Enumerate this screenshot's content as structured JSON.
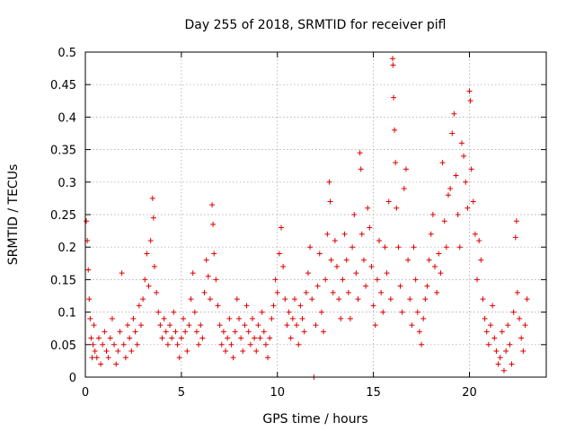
{
  "chart_data": {
    "type": "scatter",
    "title": "Day 255 of 2018, SRMTID for receiver pifl",
    "xlabel": "GPS time / hours",
    "ylabel": "SRMTID / TECUs",
    "xlim": [
      0,
      24
    ],
    "ylim": [
      0,
      0.5
    ],
    "xticks": [
      0,
      5,
      10,
      15,
      20
    ],
    "yticks": [
      0,
      0.05,
      0.1,
      0.15,
      0.2,
      0.25,
      0.3,
      0.35,
      0.4,
      0.45,
      0.5
    ],
    "xtick_labels": [
      "0",
      "5",
      "10",
      "15",
      "20"
    ],
    "ytick_labels": [
      "0",
      "0.05",
      "0.1",
      "0.15",
      "0.2",
      "0.25",
      "0.3",
      "0.35",
      "0.4",
      "0.45",
      "0.5"
    ],
    "grid": true,
    "marker": "+",
    "color": "#e00000",
    "series": [
      {
        "name": "SRMTID",
        "points": [
          [
            0.05,
            0.24
          ],
          [
            0.1,
            0.21
          ],
          [
            0.15,
            0.165
          ],
          [
            0.2,
            0.12
          ],
          [
            0.25,
            0.09
          ],
          [
            0.3,
            0.06
          ],
          [
            0.35,
            0.03
          ],
          [
            0.4,
            0.05
          ],
          [
            0.45,
            0.08
          ],
          [
            0.5,
            0.04
          ],
          [
            0.6,
            0.03
          ],
          [
            0.7,
            0.06
          ],
          [
            0.8,
            0.02
          ],
          [
            0.9,
            0.05
          ],
          [
            1.0,
            0.07
          ],
          [
            1.1,
            0.04
          ],
          [
            1.2,
            0.03
          ],
          [
            1.3,
            0.06
          ],
          [
            1.4,
            0.09
          ],
          [
            1.5,
            0.05
          ],
          [
            1.6,
            0.02
          ],
          [
            1.7,
            0.04
          ],
          [
            1.8,
            0.07
          ],
          [
            1.9,
            0.16
          ],
          [
            2.0,
            0.05
          ],
          [
            2.1,
            0.03
          ],
          [
            2.2,
            0.08
          ],
          [
            2.3,
            0.06
          ],
          [
            2.4,
            0.04
          ],
          [
            2.5,
            0.09
          ],
          [
            2.6,
            0.07
          ],
          [
            2.7,
            0.05
          ],
          [
            2.8,
            0.11
          ],
          [
            2.9,
            0.08
          ],
          [
            3.0,
            0.12
          ],
          [
            3.1,
            0.15
          ],
          [
            3.2,
            0.19
          ],
          [
            3.3,
            0.14
          ],
          [
            3.4,
            0.21
          ],
          [
            3.5,
            0.275
          ],
          [
            3.55,
            0.245
          ],
          [
            3.6,
            0.17
          ],
          [
            3.7,
            0.13
          ],
          [
            3.8,
            0.1
          ],
          [
            3.9,
            0.08
          ],
          [
            4.0,
            0.06
          ],
          [
            4.1,
            0.09
          ],
          [
            4.2,
            0.07
          ],
          [
            4.3,
            0.05
          ],
          [
            4.4,
            0.08
          ],
          [
            4.5,
            0.06
          ],
          [
            4.6,
            0.1
          ],
          [
            4.7,
            0.07
          ],
          [
            4.8,
            0.05
          ],
          [
            4.9,
            0.03
          ],
          [
            5.0,
            0.06
          ],
          [
            5.1,
            0.09
          ],
          [
            5.2,
            0.07
          ],
          [
            5.3,
            0.04
          ],
          [
            5.4,
            0.08
          ],
          [
            5.5,
            0.12
          ],
          [
            5.6,
            0.16
          ],
          [
            5.7,
            0.1
          ],
          [
            5.8,
            0.07
          ],
          [
            5.9,
            0.05
          ],
          [
            6.0,
            0.08
          ],
          [
            6.1,
            0.06
          ],
          [
            6.2,
            0.13
          ],
          [
            6.3,
            0.18
          ],
          [
            6.4,
            0.155
          ],
          [
            6.5,
            0.12
          ],
          [
            6.6,
            0.265
          ],
          [
            6.65,
            0.235
          ],
          [
            6.7,
            0.19
          ],
          [
            6.8,
            0.15
          ],
          [
            6.9,
            0.11
          ],
          [
            7.0,
            0.08
          ],
          [
            7.1,
            0.05
          ],
          [
            7.2,
            0.07
          ],
          [
            7.3,
            0.04
          ],
          [
            7.4,
            0.06
          ],
          [
            7.5,
            0.09
          ],
          [
            7.6,
            0.05
          ],
          [
            7.7,
            0.03
          ],
          [
            7.8,
            0.07
          ],
          [
            7.9,
            0.12
          ],
          [
            8.0,
            0.09
          ],
          [
            8.1,
            0.06
          ],
          [
            8.2,
            0.04
          ],
          [
            8.3,
            0.08
          ],
          [
            8.4,
            0.11
          ],
          [
            8.5,
            0.07
          ],
          [
            8.6,
            0.05
          ],
          [
            8.7,
            0.09
          ],
          [
            8.8,
            0.06
          ],
          [
            8.9,
            0.04
          ],
          [
            9.0,
            0.08
          ],
          [
            9.1,
            0.06
          ],
          [
            9.2,
            0.1
          ],
          [
            9.3,
            0.07
          ],
          [
            9.4,
            0.05
          ],
          [
            9.5,
            0.03
          ],
          [
            9.6,
            0.06
          ],
          [
            9.7,
            0.09
          ],
          [
            9.8,
            0.11
          ],
          [
            9.9,
            0.15
          ],
          [
            10.0,
            0.13
          ],
          [
            10.1,
            0.19
          ],
          [
            10.2,
            0.23
          ],
          [
            10.3,
            0.17
          ],
          [
            10.4,
            0.12
          ],
          [
            10.5,
            0.08
          ],
          [
            10.6,
            0.1
          ],
          [
            10.7,
            0.06
          ],
          [
            10.8,
            0.09
          ],
          [
            10.9,
            0.12
          ],
          [
            11.0,
            0.08
          ],
          [
            11.1,
            0.05
          ],
          [
            11.2,
            0.11
          ],
          [
            11.3,
            0.09
          ],
          [
            11.4,
            0.07
          ],
          [
            11.5,
            0.13
          ],
          [
            11.6,
            0.16
          ],
          [
            11.7,
            0.2
          ],
          [
            11.8,
            0.12
          ],
          [
            11.9,
            0.0
          ],
          [
            12.0,
            0.08
          ],
          [
            12.1,
            0.14
          ],
          [
            12.2,
            0.19
          ],
          [
            12.3,
            0.1
          ],
          [
            12.4,
            0.07
          ],
          [
            12.5,
            0.15
          ],
          [
            12.6,
            0.22
          ],
          [
            12.7,
            0.3
          ],
          [
            12.75,
            0.27
          ],
          [
            12.8,
            0.18
          ],
          [
            12.9,
            0.13
          ],
          [
            13.0,
            0.21
          ],
          [
            13.1,
            0.17
          ],
          [
            13.2,
            0.12
          ],
          [
            13.3,
            0.09
          ],
          [
            13.4,
            0.15
          ],
          [
            13.5,
            0.22
          ],
          [
            13.6,
            0.18
          ],
          [
            13.7,
            0.13
          ],
          [
            13.8,
            0.09
          ],
          [
            13.9,
            0.2
          ],
          [
            14.0,
            0.25
          ],
          [
            14.1,
            0.16
          ],
          [
            14.2,
            0.12
          ],
          [
            14.3,
            0.345
          ],
          [
            14.35,
            0.32
          ],
          [
            14.4,
            0.22
          ],
          [
            14.5,
            0.18
          ],
          [
            14.6,
            0.14
          ],
          [
            14.7,
            0.26
          ],
          [
            14.8,
            0.23
          ],
          [
            14.9,
            0.17
          ],
          [
            15.0,
            0.11
          ],
          [
            15.1,
            0.08
          ],
          [
            15.2,
            0.15
          ],
          [
            15.3,
            0.21
          ],
          [
            15.4,
            0.13
          ],
          [
            15.5,
            0.1
          ],
          [
            15.6,
            0.2
          ],
          [
            15.7,
            0.16
          ],
          [
            15.8,
            0.27
          ],
          [
            15.9,
            0.12
          ],
          [
            16.0,
            0.49
          ],
          [
            16.02,
            0.48
          ],
          [
            16.05,
            0.43
          ],
          [
            16.1,
            0.38
          ],
          [
            16.15,
            0.33
          ],
          [
            16.2,
            0.26
          ],
          [
            16.3,
            0.2
          ],
          [
            16.4,
            0.14
          ],
          [
            16.5,
            0.1
          ],
          [
            16.6,
            0.29
          ],
          [
            16.7,
            0.32
          ],
          [
            16.8,
            0.18
          ],
          [
            16.9,
            0.12
          ],
          [
            17.0,
            0.08
          ],
          [
            17.1,
            0.2
          ],
          [
            17.2,
            0.15
          ],
          [
            17.3,
            0.1
          ],
          [
            17.4,
            0.07
          ],
          [
            17.5,
            0.05
          ],
          [
            17.6,
            0.09
          ],
          [
            17.7,
            0.12
          ],
          [
            17.8,
            0.14
          ],
          [
            17.9,
            0.18
          ],
          [
            18.0,
            0.22
          ],
          [
            18.1,
            0.25
          ],
          [
            18.2,
            0.17
          ],
          [
            18.3,
            0.13
          ],
          [
            18.4,
            0.19
          ],
          [
            18.5,
            0.16
          ],
          [
            18.6,
            0.33
          ],
          [
            18.7,
            0.24
          ],
          [
            18.8,
            0.2
          ],
          [
            18.9,
            0.28
          ],
          [
            19.0,
            0.29
          ],
          [
            19.1,
            0.375
          ],
          [
            19.2,
            0.405
          ],
          [
            19.3,
            0.31
          ],
          [
            19.4,
            0.25
          ],
          [
            19.5,
            0.2
          ],
          [
            19.6,
            0.36
          ],
          [
            19.7,
            0.34
          ],
          [
            19.8,
            0.3
          ],
          [
            19.9,
            0.26
          ],
          [
            20.0,
            0.44
          ],
          [
            20.05,
            0.425
          ],
          [
            20.1,
            0.32
          ],
          [
            20.2,
            0.27
          ],
          [
            20.3,
            0.22
          ],
          [
            20.4,
            0.15
          ],
          [
            20.5,
            0.21
          ],
          [
            20.6,
            0.18
          ],
          [
            20.7,
            0.12
          ],
          [
            20.8,
            0.09
          ],
          [
            20.9,
            0.07
          ],
          [
            21.0,
            0.05
          ],
          [
            21.1,
            0.08
          ],
          [
            21.2,
            0.11
          ],
          [
            21.3,
            0.06
          ],
          [
            21.4,
            0.04
          ],
          [
            21.5,
            0.02
          ],
          [
            21.6,
            0.03
          ],
          [
            21.7,
            0.07
          ],
          [
            21.8,
            0.01
          ],
          [
            21.9,
            0.04
          ],
          [
            22.0,
            0.08
          ],
          [
            22.1,
            0.05
          ],
          [
            22.2,
            0.02
          ],
          [
            22.3,
            0.1
          ],
          [
            22.4,
            0.215
          ],
          [
            22.45,
            0.24
          ],
          [
            22.5,
            0.13
          ],
          [
            22.6,
            0.09
          ],
          [
            22.7,
            0.06
          ],
          [
            22.8,
            0.04
          ],
          [
            22.9,
            0.08
          ],
          [
            23.0,
            0.12
          ]
        ]
      }
    ]
  }
}
